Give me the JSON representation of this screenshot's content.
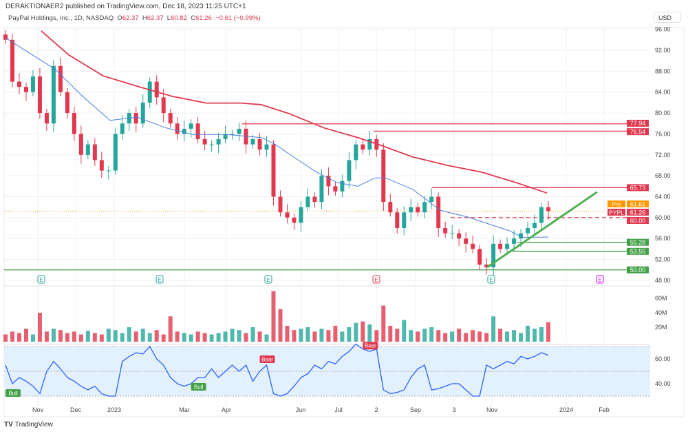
{
  "header": {
    "published": "DERAKTIONAER2 published on TradingView.com, Dec 18, 2023 11:25 UTC+1"
  },
  "legend": {
    "symbol": "PayPal Holdings, Inc., 1D, NASDAQ",
    "o_label": "O",
    "o": "62.37",
    "h_label": "H",
    "h": "62.37",
    "l_label": "L",
    "l": "60.82",
    "c_label": "C",
    "c": "61.26",
    "change": "−0.61 (−0.99%)"
  },
  "currency": "USD",
  "footer": {
    "logo": "TradingView"
  },
  "colors": {
    "up": "#26a69a",
    "down": "#e0384e",
    "ma_long": "#e0384e",
    "ma_short": "#4a7fe0",
    "support": "#43a047",
    "trend": "#4caf50",
    "rsi": "#2962ff",
    "pre": "#ff9800"
  },
  "chart_data": {
    "type": "candlestick",
    "x_ticks": [
      "Nov",
      "Dec",
      "2023",
      "Mar",
      "Apr",
      "Jun",
      "Jul",
      "2",
      "Sep",
      "3",
      "Nov",
      "2024",
      "Feb"
    ],
    "price_ticks": [
      "96.00",
      "92.00",
      "88.00",
      "84.00",
      "80.00",
      "76.00",
      "72.00",
      "68.00",
      "64.00",
      "60.00",
      "56.00",
      "52.00",
      "48.00"
    ],
    "ylim": [
      47,
      97
    ],
    "closes": [
      94,
      86,
      85,
      84,
      87,
      80,
      78,
      89,
      84,
      80,
      76,
      72,
      74,
      71,
      69,
      69,
      76,
      78,
      80,
      78,
      82,
      86,
      83,
      80,
      78,
      76,
      77,
      78,
      75,
      74,
      74,
      75,
      76,
      76,
      77,
      74,
      75,
      73,
      74,
      64,
      61,
      60,
      59,
      62,
      64,
      63,
      68,
      66,
      65,
      67,
      71,
      74,
      73,
      75,
      73,
      63,
      61,
      58,
      61,
      62,
      61,
      63,
      64,
      58,
      57,
      57,
      56,
      55,
      54,
      51,
      50.5,
      55,
      54,
      55,
      56,
      57,
      58,
      59,
      62,
      61.26
    ],
    "ma_long": [
      [
        60,
        95.7
      ],
      [
        100,
        91.1
      ],
      [
        150,
        87.1
      ],
      [
        200,
        85.1
      ],
      [
        250,
        83.2
      ],
      [
        300,
        81.9
      ],
      [
        350,
        81.9
      ],
      [
        380,
        81.6
      ],
      [
        420,
        79.9
      ],
      [
        470,
        77.2
      ],
      [
        520,
        75.3
      ],
      [
        550,
        74.0
      ],
      [
        600,
        71.6
      ],
      [
        650,
        70.0
      ],
      [
        700,
        68.7
      ],
      [
        750,
        66.7
      ],
      [
        795,
        64.7
      ]
    ],
    "ma_short": [
      [
        8,
        94.4
      ],
      [
        40,
        91.7
      ],
      [
        80,
        88.4
      ],
      [
        120,
        83.2
      ],
      [
        160,
        78.6
      ],
      [
        200,
        79.2
      ],
      [
        240,
        77.2
      ],
      [
        280,
        75.9
      ],
      [
        330,
        75.9
      ],
      [
        380,
        75.3
      ],
      [
        400,
        74.0
      ],
      [
        430,
        71.3
      ],
      [
        460,
        68.7
      ],
      [
        490,
        66.7
      ],
      [
        520,
        66.0
      ],
      [
        545,
        67.6
      ],
      [
        560,
        67.6
      ],
      [
        600,
        65.4
      ],
      [
        640,
        61.4
      ],
      [
        680,
        60.1
      ],
      [
        710,
        58.8
      ],
      [
        740,
        57.5
      ],
      [
        760,
        56.2
      ],
      [
        797,
        56.3
      ]
    ],
    "levels": [
      {
        "price": 77.94,
        "label": "77.94",
        "kind": "resistance"
      },
      {
        "price": 76.54,
        "label": "76.54",
        "kind": "resistance"
      },
      {
        "price": 65.73,
        "label": "65.73",
        "kind": "resistance"
      },
      {
        "price": 60.0,
        "label": "60.00",
        "kind": "resistance-dashed"
      },
      {
        "price": 55.28,
        "label": "55.28",
        "kind": "support"
      },
      {
        "price": 53.55,
        "label": "53.55",
        "kind": "support"
      },
      {
        "price": 50.0,
        "label": "50.00",
        "kind": "support"
      }
    ],
    "trendline": [
      [
        0.885,
        50.5
      ],
      [
        1.085,
        64.9
      ]
    ],
    "pre": {
      "label": "Pre",
      "value": "61.61"
    },
    "last": {
      "label": "PYPL",
      "value": "61.26"
    },
    "earnings": [
      {
        "label": "E",
        "color": "#26a69a"
      },
      {
        "label": "E",
        "color": "#26a69a"
      },
      {
        "label": "E",
        "color": "#26a69a"
      },
      {
        "label": "E",
        "color": "#e0384e"
      },
      {
        "label": "E",
        "color": "#26a69a"
      },
      {
        "label": "E",
        "color": "#d500f9"
      }
    ],
    "volume": {
      "ticks": [
        "60M",
        "40M",
        "20M"
      ],
      "values": [
        10,
        14,
        12,
        18,
        10,
        40,
        14,
        18,
        16,
        12,
        14,
        10,
        15,
        12,
        10,
        18,
        16,
        12,
        20,
        14,
        18,
        12,
        16,
        10,
        35,
        14,
        12,
        10,
        14,
        12,
        10,
        12,
        14,
        18,
        16,
        12,
        20,
        14,
        10,
        70,
        45,
        22,
        16,
        18,
        20,
        14,
        18,
        16,
        22,
        14,
        20,
        26,
        28,
        24,
        16,
        50,
        22,
        18,
        30,
        16,
        14,
        18,
        20,
        16,
        12,
        14,
        18,
        12,
        16,
        14,
        12,
        35,
        18,
        14,
        16,
        12,
        22,
        18,
        20,
        27
      ]
    },
    "rsi": {
      "ticks": [
        "60.00",
        "40.00"
      ],
      "values": [
        55,
        40,
        45,
        42,
        38,
        32,
        50,
        58,
        52,
        45,
        42,
        38,
        35,
        38,
        32,
        30,
        30,
        58,
        62,
        65,
        64,
        70,
        60,
        55,
        45,
        40,
        38,
        40,
        45,
        45,
        52,
        45,
        50,
        55,
        50,
        55,
        42,
        50,
        55,
        32,
        30,
        32,
        38,
        45,
        48,
        55,
        52,
        58,
        56,
        62,
        66,
        72,
        68,
        66,
        68,
        35,
        32,
        33,
        35,
        45,
        52,
        55,
        35,
        36,
        38,
        40,
        40,
        35,
        30,
        30,
        55,
        52,
        55,
        58,
        56,
        62,
        60,
        62,
        65,
        63
      ],
      "markers": [
        {
          "label": "Bull",
          "index": 1
        },
        {
          "label": "Bull",
          "index": 28
        },
        {
          "label": "Bear",
          "index": 38
        },
        {
          "label": "Bear",
          "index": 53
        }
      ]
    }
  }
}
